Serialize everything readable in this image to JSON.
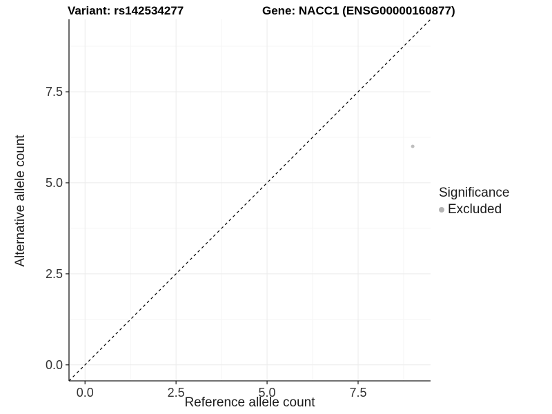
{
  "header": {
    "title_left": "Variant: rs142534277",
    "title_right": "Gene: NACC1 (ENSG00000160877)"
  },
  "chart_data": {
    "type": "scatter",
    "xlabel": "Reference allele count",
    "ylabel": "Alternative allele count",
    "xlim": [
      -0.44,
      9.49
    ],
    "ylim": [
      -0.44,
      9.49
    ],
    "x_ticks": [
      {
        "value": 0.0,
        "label": "0.0"
      },
      {
        "value": 2.5,
        "label": "2.5"
      },
      {
        "value": 5.0,
        "label": "5.0"
      },
      {
        "value": 7.5,
        "label": "7.5"
      }
    ],
    "y_ticks": [
      {
        "value": 0.0,
        "label": "0.0"
      },
      {
        "value": 2.5,
        "label": "2.5"
      },
      {
        "value": 5.0,
        "label": "5.0"
      },
      {
        "value": 7.5,
        "label": "7.5"
      }
    ],
    "grid": {
      "major_x": [
        0.0,
        2.5,
        5.0,
        7.5
      ],
      "major_y": [
        0.0,
        2.5,
        5.0,
        7.5
      ],
      "minor_x": [
        1.25,
        3.75,
        6.25,
        8.75
      ],
      "minor_y": [
        1.25,
        3.75,
        6.25,
        8.75
      ],
      "major_color": "#ebebeb",
      "minor_color": "#f5f5f5"
    },
    "reference_line": {
      "kind": "identity",
      "style": "dashed",
      "color": "#000000"
    },
    "series": [
      {
        "name": "Excluded",
        "color": "#bebebe",
        "point_radius": 2.5,
        "points": [
          {
            "x": 9,
            "y": 6
          }
        ]
      }
    ],
    "legend": {
      "position": "right",
      "title": "Significance",
      "items": [
        {
          "label": "Excluded",
          "color": "#b3b3b3"
        }
      ]
    },
    "axis_color": "#1a1a1a",
    "tick_label_color": "#333333"
  }
}
